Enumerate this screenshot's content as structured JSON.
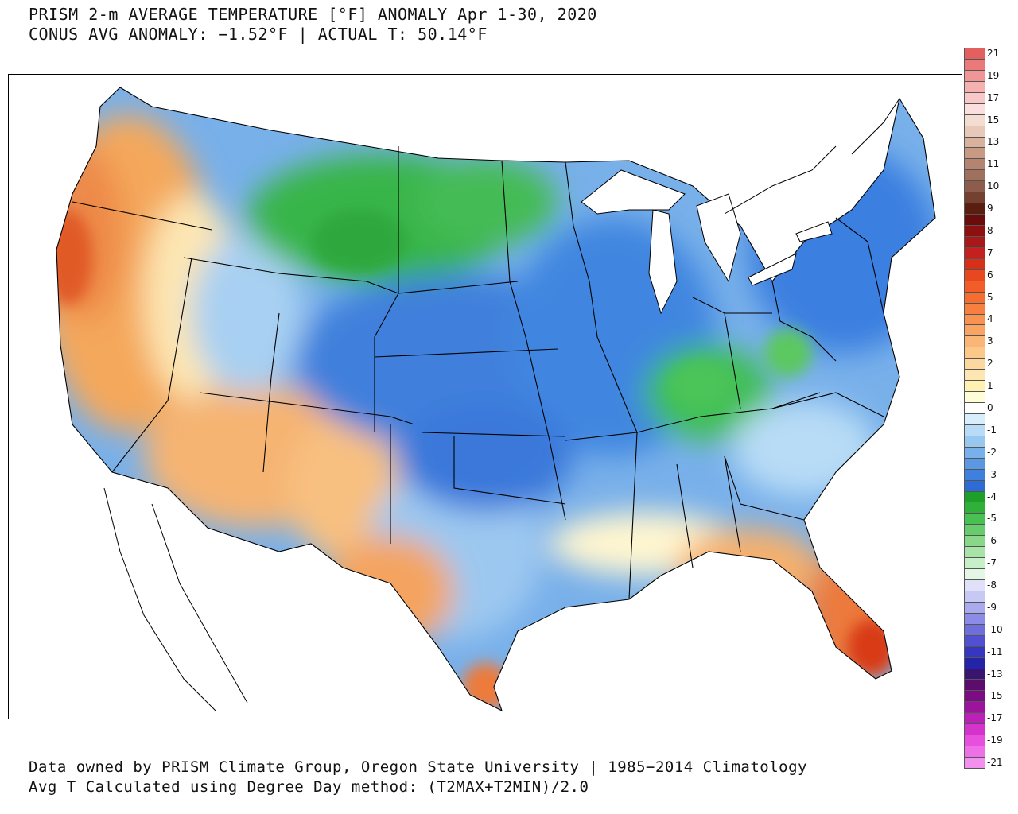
{
  "header": {
    "title_line_1": "PRISM 2-m AVERAGE TEMPERATURE [°F] ANOMALY Apr 1-30, 2020",
    "title_line_2": "CONUS AVG ANOMALY: −1.52°F | ACTUAL T: 50.14°F"
  },
  "footer": {
    "credit_line_1": "Data owned by PRISM Climate Group, Oregon State University | 1985−2014 Climatology",
    "credit_line_2": "Avg T Calculated using Degree Day method: (T2MAX+T2MIN)/2.0"
  },
  "map": {
    "region": "Contiguous United States",
    "field": "Temperature anomaly (°F)",
    "regional_patterns": [
      {
        "region": "West Coast / Great Basin",
        "anomaly_class": "warm",
        "color": "#f2a65a"
      },
      {
        "region": "Desert Southwest",
        "anomaly_class": "warm",
        "color": "#f4b46b"
      },
      {
        "region": "Northern Plains / Montana",
        "anomaly_class": "very cold",
        "color": "#39b54a"
      },
      {
        "region": "Central US / Midwest",
        "anomaly_class": "cold",
        "color": "#3f86e0"
      },
      {
        "region": "Ohio Valley",
        "anomaly_class": "very cold",
        "color": "#3fbf55"
      },
      {
        "region": "Northeast",
        "anomaly_class": "cold",
        "color": "#3a7fe0"
      },
      {
        "region": "South Texas / Gulf Coast",
        "anomaly_class": "warm",
        "color": "#f08a45"
      },
      {
        "region": "South Florida",
        "anomaly_class": "very warm",
        "color": "#e04a20"
      }
    ]
  },
  "legend": {
    "entries": [
      {
        "label": "21",
        "color": "#e26060"
      },
      {
        "label": "",
        "color": "#ea7a7a"
      },
      {
        "label": "19",
        "color": "#f09696"
      },
      {
        "label": "",
        "color": "#f5b0b0"
      },
      {
        "label": "17",
        "color": "#f8c8c8"
      },
      {
        "label": "",
        "color": "#fbdede"
      },
      {
        "label": "15",
        "color": "#f3ddd0"
      },
      {
        "label": "",
        "color": "#e8c8b8"
      },
      {
        "label": "13",
        "color": "#d9b29e"
      },
      {
        "label": "",
        "color": "#c89a84"
      },
      {
        "label": "11",
        "color": "#b48470"
      },
      {
        "label": "",
        "color": "#a0705e"
      },
      {
        "label": "10",
        "color": "#8c5c4c"
      },
      {
        "label": "",
        "color": "#744030"
      },
      {
        "label": "9",
        "color": "#5a1e10"
      },
      {
        "label": "",
        "color": "#6a0c0c"
      },
      {
        "label": "8",
        "color": "#8c1010"
      },
      {
        "label": "",
        "color": "#a81818"
      },
      {
        "label": "7",
        "color": "#c42020"
      },
      {
        "label": "",
        "color": "#d83018"
      },
      {
        "label": "6",
        "color": "#e84820"
      },
      {
        "label": "",
        "color": "#f25c28"
      },
      {
        "label": "5",
        "color": "#f56e30"
      },
      {
        "label": "",
        "color": "#f78040"
      },
      {
        "label": "4",
        "color": "#f89250"
      },
      {
        "label": "",
        "color": "#f9a462"
      },
      {
        "label": "3",
        "color": "#fab676"
      },
      {
        "label": "",
        "color": "#fbc88a"
      },
      {
        "label": "2",
        "color": "#fcd89e"
      },
      {
        "label": "",
        "color": "#fde6b2"
      },
      {
        "label": "1",
        "color": "#fff2b0"
      },
      {
        "label": "",
        "color": "#fffcd8"
      },
      {
        "label": "0",
        "color": "#ffffff"
      },
      {
        "label": "",
        "color": "#d8eefb"
      },
      {
        "label": "-1",
        "color": "#b8dcf6"
      },
      {
        "label": "",
        "color": "#98c8f0"
      },
      {
        "label": "-2",
        "color": "#78b0ea"
      },
      {
        "label": "",
        "color": "#5a98e4"
      },
      {
        "label": "-3",
        "color": "#3f80dc"
      },
      {
        "label": "",
        "color": "#2c6cd4"
      },
      {
        "label": "-4",
        "color": "#1ea028"
      },
      {
        "label": "",
        "color": "#30b03a"
      },
      {
        "label": "-5",
        "color": "#48c052"
      },
      {
        "label": "",
        "color": "#66cc6c"
      },
      {
        "label": "-6",
        "color": "#88d888"
      },
      {
        "label": "",
        "color": "#a8e4a8"
      },
      {
        "label": "-7",
        "color": "#c8f0c8"
      },
      {
        "label": "",
        "color": "#e4f6e4"
      },
      {
        "label": "-8",
        "color": "#e0e0f8"
      },
      {
        "label": "",
        "color": "#c8c8f4"
      },
      {
        "label": "-9",
        "color": "#aaaaee"
      },
      {
        "label": "",
        "color": "#8c8ce6"
      },
      {
        "label": "-10",
        "color": "#6e6edc"
      },
      {
        "label": "",
        "color": "#5050d0"
      },
      {
        "label": "-11",
        "color": "#3636c0"
      },
      {
        "label": "",
        "color": "#2424a8"
      },
      {
        "label": "-13",
        "color": "#3a1470"
      },
      {
        "label": "",
        "color": "#5c0c6c"
      },
      {
        "label": "-15",
        "color": "#7c0c84"
      },
      {
        "label": "",
        "color": "#9c149c"
      },
      {
        "label": "-17",
        "color": "#bc20b8"
      },
      {
        "label": "",
        "color": "#d434cc"
      },
      {
        "label": "-19",
        "color": "#e650dc"
      },
      {
        "label": "",
        "color": "#ee70e6"
      },
      {
        "label": "-21",
        "color": "#f290ee"
      }
    ]
  }
}
